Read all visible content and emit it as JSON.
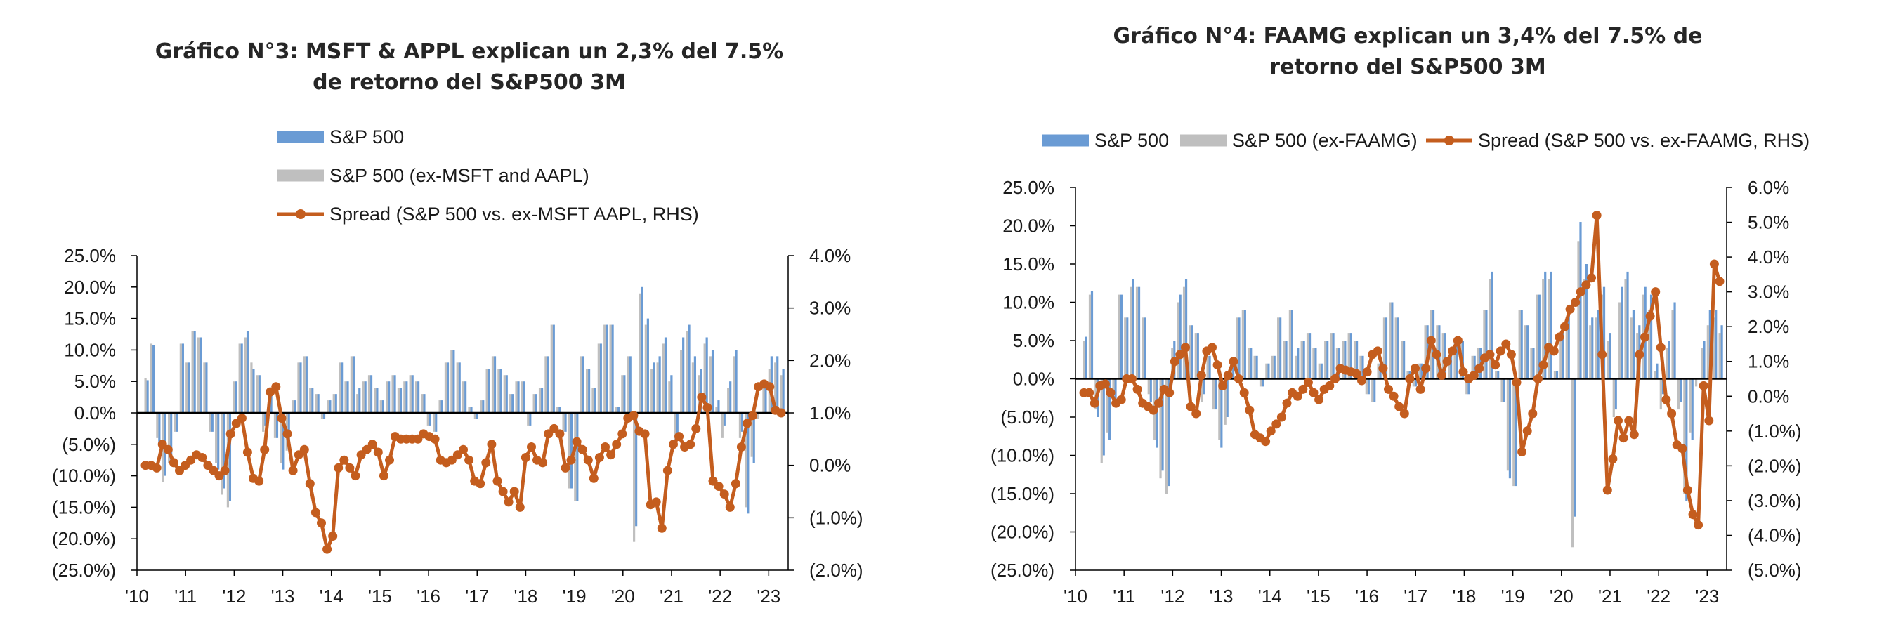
{
  "colors": {
    "sp500": "#6a9bd4",
    "ex": "#bfbfbf",
    "spread": "#c45d1e",
    "axis": "#000000",
    "text": "#1a1a1a"
  },
  "chart_data": [
    {
      "type": "bar+line",
      "title_lines": [
        "Gráfico N°3: MSFT & APPL explican un 2,3% del 7.5%",
        "de retorno del S&P500 3M"
      ],
      "legend": {
        "placement": "top-stacked",
        "entries": [
          "S&P 500",
          "S&P 500 (ex-MSFT and AAPL)",
          "Spread (S&P 500 vs. ex-MSFT AAPL, RHS)"
        ]
      },
      "x_tick_labels": [
        "'10",
        "'11",
        "'12",
        "'13",
        "'14",
        "'15",
        "'16",
        "'17",
        "'18",
        "'19",
        "'20",
        "'21",
        "'22",
        "'23"
      ],
      "y_left": {
        "min": -25,
        "max": 25,
        "step": 5,
        "tick_labels": [
          "25.0%",
          "20.0%",
          "15.0%",
          "10.0%",
          "5.0%",
          "0.0%",
          "(5.0%)",
          "(10.0%)",
          "(15.0%)",
          "(20.0%)",
          "(25.0%)"
        ]
      },
      "y_right": {
        "min": -2,
        "max": 4,
        "step": 1,
        "tick_labels": [
          "4.0%",
          "3.0%",
          "2.0%",
          "1.0%",
          "0.0%",
          "(1.0%)",
          "(2.0%)"
        ]
      },
      "x_start_year": 2010,
      "x_end_year": 2023.4,
      "grid": false,
      "series": [
        {
          "name": "S&P 500",
          "values": [
            5.2,
            10.8,
            -5,
            -10,
            -8,
            -3,
            11,
            8,
            13,
            12,
            8,
            -3,
            -9,
            -12,
            -14,
            5,
            11,
            13,
            7,
            6,
            -2,
            3,
            -4,
            -9,
            -5,
            2,
            8,
            9,
            4,
            3,
            -1,
            2,
            3,
            8,
            5,
            9,
            4,
            5,
            6,
            4,
            2,
            5,
            6,
            4,
            5,
            6,
            5,
            3,
            -2,
            -3,
            2,
            8,
            10,
            8,
            5,
            1,
            -1,
            2,
            7,
            9,
            7,
            6,
            3,
            5,
            5,
            -2,
            3,
            4,
            9,
            14,
            1,
            -3,
            -12,
            -14,
            9,
            7,
            4,
            11,
            14,
            14,
            1,
            6,
            9,
            -18,
            20,
            15,
            8,
            9,
            12,
            6,
            -4,
            12,
            14,
            9,
            7,
            12,
            10,
            2,
            -2,
            5,
            10,
            -3,
            -16,
            -8,
            0,
            5,
            9,
            9,
            7
          ],
          "color": "sp500"
        },
        {
          "name": "S&P 500 (ex-MSFT and AAPL)",
          "values": [
            5.5,
            11,
            -4,
            -11,
            -8,
            -3,
            11,
            8,
            13,
            12,
            8,
            -3,
            -8,
            -13,
            -15,
            5,
            11,
            12,
            8,
            6,
            -3,
            3,
            -4,
            -8,
            -6,
            2,
            8,
            9,
            4,
            3,
            -1,
            2,
            3,
            8,
            5,
            9,
            3,
            5,
            6,
            4,
            2,
            5,
            6,
            4,
            5,
            6,
            5,
            3,
            -2,
            -3,
            2,
            8,
            10,
            8,
            5,
            1,
            -1,
            2,
            7,
            9,
            7,
            6,
            3,
            5,
            5,
            -2,
            3,
            4,
            9,
            14,
            1,
            -3,
            -12,
            -14,
            9,
            7,
            4,
            11,
            14,
            14,
            1,
            6,
            9,
            -20.5,
            19,
            14,
            7,
            8,
            11,
            5,
            -5,
            10,
            13,
            8,
            6,
            11,
            9,
            1,
            -4,
            4,
            9,
            -4,
            -15,
            -7,
            -1,
            4,
            7,
            8,
            6
          ],
          "color": "ex"
        },
        {
          "name": "Spread (S&P 500 vs. ex-MSFT AAPL, RHS)",
          "axis": "right",
          "values": [
            0,
            0,
            -0.05,
            0.4,
            0.3,
            0.05,
            -0.1,
            0,
            0.1,
            0.2,
            0.15,
            0,
            -0.1,
            -0.2,
            -0.1,
            0.6,
            0.8,
            0.9,
            0.25,
            -0.25,
            -0.3,
            0.3,
            1.4,
            1.5,
            0.9,
            0.6,
            -0.1,
            0.2,
            0.3,
            -0.35,
            -0.9,
            -1.1,
            -1.6,
            -1.35,
            -0.05,
            0.1,
            -0.05,
            -0.2,
            0.2,
            0.3,
            0.4,
            0.25,
            -0.2,
            0.1,
            0.55,
            0.5,
            0.5,
            0.5,
            0.5,
            0.6,
            0.55,
            0.5,
            0.1,
            0.05,
            0.1,
            0.2,
            0.3,
            0.1,
            -0.3,
            -0.35,
            0.05,
            0.4,
            -0.3,
            -0.5,
            -0.7,
            -0.5,
            -0.8,
            0.15,
            0.35,
            0.1,
            0.05,
            0.6,
            0.7,
            0.6,
            -0.05,
            0.1,
            0.45,
            0.3,
            0.1,
            -0.25,
            0.15,
            0.35,
            0.2,
            0.4,
            0.6,
            0.9,
            0.95,
            0.65,
            0.6,
            -0.75,
            -0.7,
            -1.2,
            -0.1,
            0.4,
            0.55,
            0.35,
            0.4,
            0.7,
            1.3,
            1.1,
            -0.3,
            -0.4,
            -0.55,
            -0.8,
            -0.35,
            0.35,
            0.8,
            0.95,
            1.5,
            1.55,
            1.5,
            1.05,
            1.0
          ],
          "color": "spread"
        }
      ]
    },
    {
      "type": "bar+line",
      "title_lines": [
        "Gráfico N°4: FAAMG explican un 3,4% del 7.5% de",
        "retorno del S&P500 3M"
      ],
      "legend": {
        "placement": "top-row",
        "entries": [
          "S&P 500",
          "S&P 500 (ex-FAAMG)",
          "Spread (S&P 500 vs. ex-FAAMG, RHS)"
        ]
      },
      "x_tick_labels": [
        "'10",
        "'11",
        "'12",
        "'13",
        "'14",
        "'15",
        "'16",
        "'17",
        "'18",
        "'19",
        "'20",
        "'21",
        "'22",
        "'23"
      ],
      "y_left": {
        "min": -25,
        "max": 25,
        "step": 5,
        "tick_labels": [
          "25.0%",
          "20.0%",
          "15.0%",
          "10.0%",
          "5.0%",
          "0.0%",
          "(5.0%)",
          "(10.0%)",
          "(15.0%)",
          "(20.0%)",
          "(25.0%)"
        ]
      },
      "y_right": {
        "min": -5,
        "max": 6,
        "step": 1,
        "tick_labels": [
          "6.0%",
          "5.0%",
          "4.0%",
          "3.0%",
          "2.0%",
          "1.0%",
          "0.0%",
          "(1.0%)",
          "(2.0%)",
          "(3.0%)",
          "(4.0%)",
          "(5.0%)"
        ]
      },
      "x_start_year": 2010,
      "x_end_year": 2023.4,
      "grid": false,
      "series": [
        {
          "name": "S&P 500",
          "values": [
            5.5,
            11.5,
            -5,
            -10,
            -8,
            -3,
            11,
            8,
            13,
            12,
            8,
            -3,
            -9,
            -12,
            -14,
            5,
            11,
            13,
            7,
            6,
            -2,
            3,
            -4,
            -9,
            -5,
            2,
            8,
            9,
            4,
            3,
            -1,
            2,
            3,
            8,
            5,
            9,
            4,
            5,
            6,
            4,
            2,
            5,
            6,
            4,
            5,
            6,
            5,
            3,
            -2,
            -3,
            2,
            8,
            10,
            8,
            5,
            1,
            -1,
            2,
            7,
            9,
            7,
            6,
            3,
            5,
            5,
            -2,
            3,
            4,
            9,
            14,
            1,
            -3,
            -13,
            -14,
            9,
            7,
            4,
            11,
            14,
            14,
            1,
            6,
            9,
            -18,
            20.5,
            15,
            8,
            9,
            12,
            6,
            -4,
            12,
            14,
            9,
            7,
            12,
            11,
            2,
            -2,
            5,
            10,
            -3,
            -16,
            -8,
            0,
            5,
            9,
            9,
            7
          ],
          "color": "sp500"
        },
        {
          "name": "S&P 500 (ex-FAAMG)",
          "values": [
            5,
            11,
            -4,
            -11,
            -7,
            -2,
            11,
            8,
            12,
            12,
            8,
            -2,
            -8,
            -13,
            -15,
            4,
            10,
            12,
            7,
            6,
            -3,
            3,
            -4,
            -8,
            -6,
            2,
            8,
            9,
            4,
            3,
            -1,
            2,
            3,
            8,
            5,
            9,
            3,
            5,
            6,
            4,
            2,
            5,
            6,
            4,
            5,
            6,
            5,
            3,
            -2,
            -3,
            2,
            8,
            10,
            8,
            5,
            1,
            -1,
            2,
            7,
            9,
            7,
            6,
            3,
            5,
            5,
            -2,
            3,
            4,
            9,
            13,
            1,
            -3,
            -12,
            -14,
            9,
            7,
            4,
            11,
            13,
            13,
            1,
            5,
            8,
            -22,
            18,
            13,
            7,
            8,
            11,
            5,
            -5,
            10,
            13,
            8,
            6,
            11,
            9,
            1,
            -4,
            4,
            9,
            -4,
            -15,
            -7,
            -1,
            4,
            7,
            8,
            6
          ],
          "color": "ex"
        },
        {
          "name": "Spread (S&P 500 vs. ex-FAAMG, RHS)",
          "axis": "right",
          "values": [
            0.1,
            0.1,
            -0.2,
            0.3,
            0.35,
            0.1,
            -0.2,
            -0.1,
            0.5,
            0.5,
            0.2,
            -0.2,
            -0.3,
            -0.4,
            -0.2,
            0.2,
            0.1,
            1,
            1.2,
            1.4,
            -0.3,
            -0.5,
            0.6,
            1.3,
            1.4,
            0.9,
            0.3,
            0.6,
            1,
            0.5,
            0.1,
            -0.4,
            -1.1,
            -1.2,
            -1.3,
            -1,
            -0.8,
            -0.6,
            -0.2,
            0.1,
            0,
            0.2,
            0.4,
            0.1,
            -0.1,
            0.2,
            0.3,
            0.5,
            0.8,
            0.75,
            0.7,
            0.65,
            0.45,
            0.7,
            1.2,
            1.3,
            0.8,
            0.2,
            0,
            -0.3,
            -0.5,
            0.5,
            0.8,
            0.2,
            0.8,
            1.6,
            1.2,
            0.6,
            1.0,
            1.3,
            1.6,
            0.7,
            0.5,
            0.6,
            0.8,
            1.1,
            1.2,
            0.9,
            1.3,
            1.5,
            1.2,
            0.4,
            -1.6,
            -1.0,
            -0.5,
            0.5,
            0.9,
            1.4,
            1.3,
            1.7,
            2.0,
            2.5,
            2.7,
            3.0,
            3.2,
            3.4,
            5.2,
            1.2,
            -2.7,
            -1.8,
            -0.7,
            -1.2,
            -0.7,
            -1.1,
            1.2,
            1.7,
            2.3,
            3.0,
            1.4,
            -0.1,
            -0.5,
            -1.4,
            -1.5,
            -2.7,
            -3.4,
            -3.7,
            0.3,
            -0.7,
            3.8,
            3.3
          ],
          "color": "spread"
        }
      ]
    }
  ]
}
